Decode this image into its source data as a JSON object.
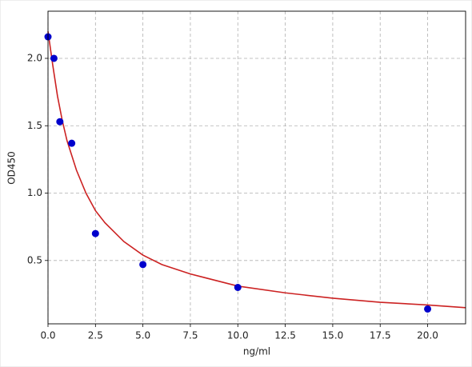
{
  "chart_data": {
    "type": "scatter",
    "xlabel": "ng/ml",
    "ylabel": "OD450",
    "xlim": [
      0,
      22
    ],
    "ylim": [
      0.03,
      2.35
    ],
    "xticks": [
      {
        "value": 0,
        "label": "0.0"
      },
      2.5,
      {
        "value": 5,
        "label": "5.0"
      },
      7.5,
      {
        "value": 10,
        "label": "10.0"
      },
      12.5,
      {
        "value": 15,
        "label": "15.0"
      },
      17.5,
      {
        "value": 20,
        "label": "20.0"
      }
    ],
    "yticks": [
      0.5,
      {
        "value": 1,
        "label": "1.0"
      },
      1.5,
      {
        "value": 2,
        "label": "2.0"
      }
    ],
    "grid": true,
    "series": [
      {
        "type": "scatter",
        "color": "#0000cc",
        "x": [
          0,
          0.3125,
          0.625,
          1.25,
          2.5,
          5,
          10,
          20
        ],
        "values": [
          2.16,
          2.0,
          1.53,
          1.37,
          0.7,
          0.47,
          0.3,
          0.14
        ]
      },
      {
        "type": "line",
        "color": "#cc2222",
        "x": [
          0,
          0.25,
          0.5,
          0.75,
          1,
          1.5,
          2,
          2.5,
          3,
          4,
          5,
          6,
          7.5,
          10,
          12.5,
          15,
          17.5,
          20,
          22
        ],
        "values": [
          2.2,
          1.95,
          1.72,
          1.54,
          1.39,
          1.17,
          1.0,
          0.87,
          0.78,
          0.64,
          0.54,
          0.47,
          0.4,
          0.31,
          0.26,
          0.22,
          0.19,
          0.17,
          0.15
        ]
      }
    ]
  }
}
